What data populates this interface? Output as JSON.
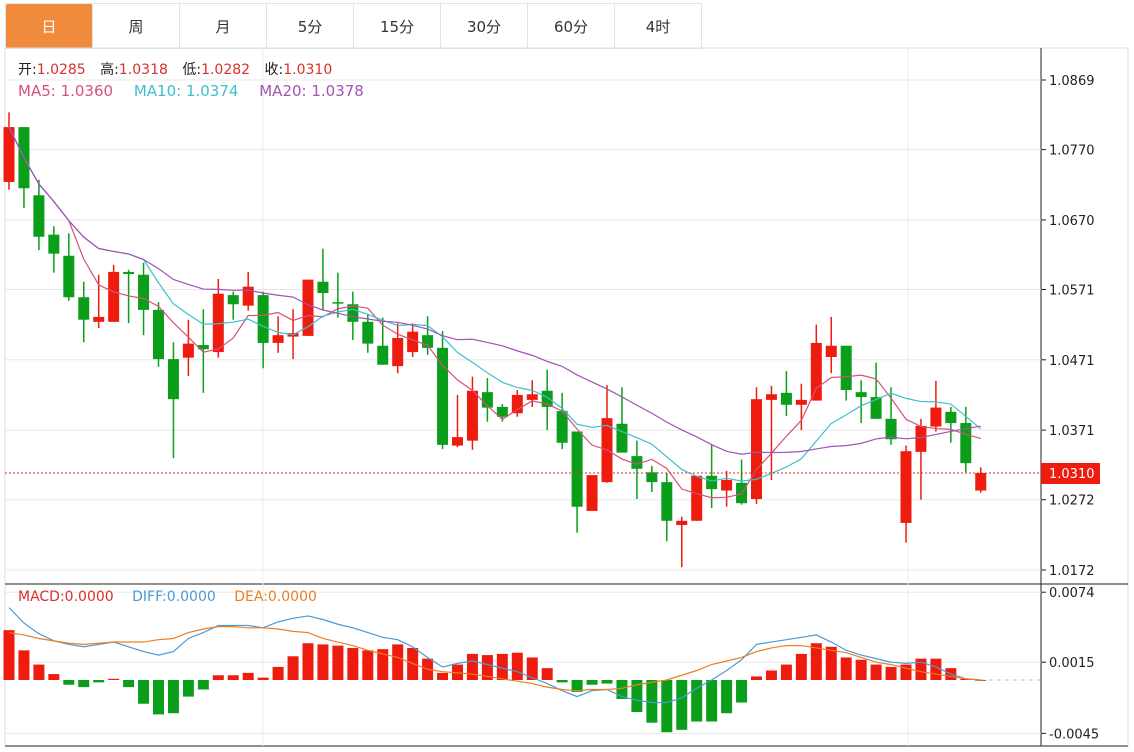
{
  "tabs": [
    "日",
    "周",
    "月",
    "5分",
    "15分",
    "30分",
    "60分",
    "4时"
  ],
  "active_tab": 0,
  "ohlc": {
    "open_label": "开:",
    "open": "1.0285",
    "high_label": "高:",
    "high": "1.0318",
    "low_label": "低:",
    "low": "1.0282",
    "close_label": "收:",
    "close": "1.0310"
  },
  "ma": {
    "ma5_label": "MA5: 1.0360",
    "ma10_label": "MA10: 1.0374",
    "ma20_label": "MA20: 1.0378"
  },
  "macd": {
    "macd_label": "MACD:0.0000",
    "diff_label": "DIFF:0.0000",
    "dea_label": "DEA:0.0000"
  },
  "colors": {
    "up": "#ee1c0e",
    "down": "#0a9e1a",
    "ma5": "#d6507e",
    "ma10": "#3fbfcc",
    "ma20": "#a452b6",
    "diff": "#4a9ad8",
    "dea": "#ea7f24",
    "accent": "#f08a3c"
  },
  "chart_data": [
    {
      "type": "candlestick",
      "y_ticks": [
        "1.0869",
        "1.0770",
        "1.0670",
        "1.0571",
        "1.0471",
        "1.0371",
        "1.0272",
        "1.0172"
      ],
      "ylim": [
        1.0157,
        1.0904
      ],
      "last_price": "1.0310",
      "ohlc": [
        [
          1.0724,
          1.0823,
          1.0713,
          1.0802
        ],
        [
          1.0802,
          1.0802,
          1.0687,
          1.0715
        ],
        [
          1.0705,
          1.0727,
          1.0627,
          1.0646
        ],
        [
          1.0649,
          1.0661,
          1.0595,
          1.0622
        ],
        [
          1.0619,
          1.0651,
          1.0555,
          1.056
        ],
        [
          1.056,
          1.0582,
          1.0496,
          1.0528
        ],
        [
          1.0525,
          1.0592,
          1.0516,
          1.0532
        ],
        [
          1.0525,
          1.0606,
          1.0525,
          1.0596
        ],
        [
          1.0596,
          1.0599,
          1.0523,
          1.0593
        ],
        [
          1.0592,
          1.0609,
          1.0506,
          1.0542
        ],
        [
          1.0542,
          1.0553,
          1.0461,
          1.0472
        ],
        [
          1.0472,
          1.0496,
          1.0331,
          1.0415
        ],
        [
          1.0474,
          1.0528,
          1.0448,
          1.0494
        ],
        [
          1.0492,
          1.0543,
          1.0424,
          1.0486
        ],
        [
          1.0482,
          1.0586,
          1.0474,
          1.0565
        ],
        [
          1.0563,
          1.0568,
          1.0528,
          1.055
        ],
        [
          1.0548,
          1.0596,
          1.0541,
          1.0575
        ],
        [
          1.0563,
          1.0568,
          1.0459,
          1.0495
        ],
        [
          1.0495,
          1.0533,
          1.0481,
          1.0506
        ],
        [
          1.0504,
          1.0543,
          1.0472,
          1.0509
        ],
        [
          1.0505,
          1.0585,
          1.0505,
          1.0585
        ],
        [
          1.0582,
          1.0629,
          1.0542,
          1.0566
        ],
        [
          1.0553,
          1.0595,
          1.0531,
          1.0552
        ],
        [
          1.055,
          1.0568,
          1.0499,
          1.0525
        ],
        [
          1.0525,
          1.0535,
          1.0481,
          1.0494
        ],
        [
          1.0491,
          1.0531,
          1.0464,
          1.0464
        ],
        [
          1.0462,
          1.0523,
          1.0452,
          1.0502
        ],
        [
          1.0482,
          1.0523,
          1.0475,
          1.0511
        ],
        [
          1.0506,
          1.0533,
          1.0478,
          1.0488
        ],
        [
          1.0488,
          1.0512,
          1.0344,
          1.035
        ],
        [
          1.0349,
          1.0421,
          1.0347,
          1.0361
        ],
        [
          1.0356,
          1.0447,
          1.0343,
          1.0427
        ],
        [
          1.0425,
          1.0445,
          1.0383,
          1.0403
        ],
        [
          1.0404,
          1.0408,
          1.0383,
          1.039
        ],
        [
          1.0395,
          1.0428,
          1.039,
          1.0421
        ],
        [
          1.0414,
          1.0442,
          1.0404,
          1.0422
        ],
        [
          1.0427,
          1.0457,
          1.0371,
          1.0404
        ],
        [
          1.0398,
          1.0424,
          1.0344,
          1.0353
        ],
        [
          1.0369,
          1.0369,
          1.0225,
          1.0262
        ],
        [
          1.0256,
          1.0307,
          1.0256,
          1.0307
        ],
        [
          1.0297,
          1.0435,
          1.0296,
          1.0388
        ],
        [
          1.038,
          1.0432,
          1.0339,
          1.0339
        ],
        [
          1.0334,
          1.0356,
          1.0273,
          1.0316
        ],
        [
          1.0311,
          1.032,
          1.0283,
          1.0297
        ],
        [
          1.0297,
          1.031,
          1.0213,
          1.0242
        ],
        [
          1.0236,
          1.0248,
          1.0176,
          1.0242
        ],
        [
          1.0242,
          1.0306,
          1.0242,
          1.0306
        ],
        [
          1.0306,
          1.035,
          1.026,
          1.0287
        ],
        [
          1.0285,
          1.0313,
          1.0262,
          1.03
        ],
        [
          1.0296,
          1.0329,
          1.0265,
          1.0267
        ],
        [
          1.0273,
          1.0432,
          1.0266,
          1.0415
        ],
        [
          1.0414,
          1.0434,
          1.03,
          1.0422
        ],
        [
          1.0424,
          1.0455,
          1.0391,
          1.0407
        ],
        [
          1.0407,
          1.0437,
          1.0371,
          1.0414
        ],
        [
          1.0413,
          1.0521,
          1.0413,
          1.0495
        ],
        [
          1.0475,
          1.0532,
          1.0452,
          1.0491
        ],
        [
          1.0491,
          1.0491,
          1.0413,
          1.0428
        ],
        [
          1.0425,
          1.0442,
          1.0381,
          1.0418
        ],
        [
          1.0418,
          1.0467,
          1.0387,
          1.0387
        ],
        [
          1.0387,
          1.0432,
          1.035,
          1.0358
        ],
        [
          1.0239,
          1.0349,
          1.0211,
          1.0341
        ],
        [
          1.034,
          1.0387,
          1.0272,
          1.0377
        ],
        [
          1.0376,
          1.0441,
          1.0369,
          1.0403
        ],
        [
          1.0397,
          1.0404,
          1.0353,
          1.0381
        ],
        [
          1.0381,
          1.0404,
          1.0311,
          1.0324
        ],
        [
          1.0285,
          1.0318,
          1.0282,
          1.031
        ]
      ]
    },
    {
      "type": "bar",
      "y_ticks": [
        "0.0074",
        "0.0015",
        "-0.0045"
      ],
      "ylim": [
        -0.0045,
        0.0074
      ],
      "histogram": [
        0.0042,
        0.0025,
        0.0013,
        0.0005,
        -0.0004,
        -0.0006,
        -0.0002,
        0.0001,
        -0.0006,
        -0.002,
        -0.0029,
        -0.0028,
        -0.0014,
        -0.0008,
        0.0004,
        0.0004,
        0.0006,
        0.0002,
        0.0011,
        0.002,
        0.0031,
        0.003,
        0.0029,
        0.0027,
        0.0025,
        0.0026,
        0.003,
        0.0027,
        0.0018,
        0.0006,
        0.0013,
        0.0022,
        0.0021,
        0.0022,
        0.0023,
        0.0019,
        0.001,
        -0.0002,
        -0.001,
        -0.0004,
        -0.0003,
        -0.0016,
        -0.0027,
        -0.0036,
        -0.0044,
        -0.0042,
        -0.0035,
        -0.0035,
        -0.0028,
        -0.0019,
        0.0003,
        0.0008,
        0.0013,
        0.0022,
        0.0031,
        0.0028,
        0.0019,
        0.0017,
        0.0013,
        0.0011,
        0.0013,
        0.0018,
        0.0018,
        0.001,
        0.0001,
        0.0
      ],
      "diff": [
        0.0061,
        0.0048,
        0.0039,
        0.0033,
        0.003,
        0.0028,
        0.003,
        0.0032,
        0.0028,
        0.0024,
        0.0021,
        0.0024,
        0.0035,
        0.004,
        0.0046,
        0.0046,
        0.0046,
        0.0044,
        0.0049,
        0.0052,
        0.0054,
        0.0051,
        0.0047,
        0.0044,
        0.004,
        0.0036,
        0.0034,
        0.0028,
        0.0019,
        0.0011,
        0.0014,
        0.0016,
        0.0013,
        0.001,
        0.0007,
        0.0002,
        -0.0003,
        -0.0009,
        -0.0014,
        -0.0009,
        -0.0008,
        -0.0014,
        -0.0017,
        -0.0019,
        -0.0019,
        -0.0015,
        -0.0007,
        0.0,
        0.0008,
        0.0017,
        0.003,
        0.0032,
        0.0034,
        0.0036,
        0.0038,
        0.0032,
        0.0025,
        0.0021,
        0.0018,
        0.0015,
        0.0014,
        0.0015,
        0.0011,
        0.0005,
        0.0001,
        0.0
      ],
      "dea": [
        0.004,
        0.0038,
        0.0035,
        0.0033,
        0.0031,
        0.003,
        0.0031,
        0.0032,
        0.0032,
        0.0032,
        0.0034,
        0.0035,
        0.004,
        0.0043,
        0.0045,
        0.0045,
        0.0044,
        0.0044,
        0.0043,
        0.0041,
        0.004,
        0.0035,
        0.0032,
        0.0029,
        0.0025,
        0.0022,
        0.0019,
        0.0014,
        0.0009,
        0.0007,
        0.0006,
        0.0005,
        0.0003,
        0.0001,
        -0.0001,
        -0.0003,
        -0.0006,
        -0.0008,
        -0.0009,
        -0.0008,
        -0.0008,
        -0.0007,
        -0.0004,
        -0.0002,
        0.0,
        0.0004,
        0.0008,
        0.0013,
        0.0016,
        0.0019,
        0.0024,
        0.0027,
        0.0029,
        0.0029,
        0.0027,
        0.0025,
        0.0023,
        0.0019,
        0.0015,
        0.0013,
        0.001,
        0.0007,
        0.0005,
        0.0003,
        0.0001,
        0.0
      ]
    }
  ]
}
